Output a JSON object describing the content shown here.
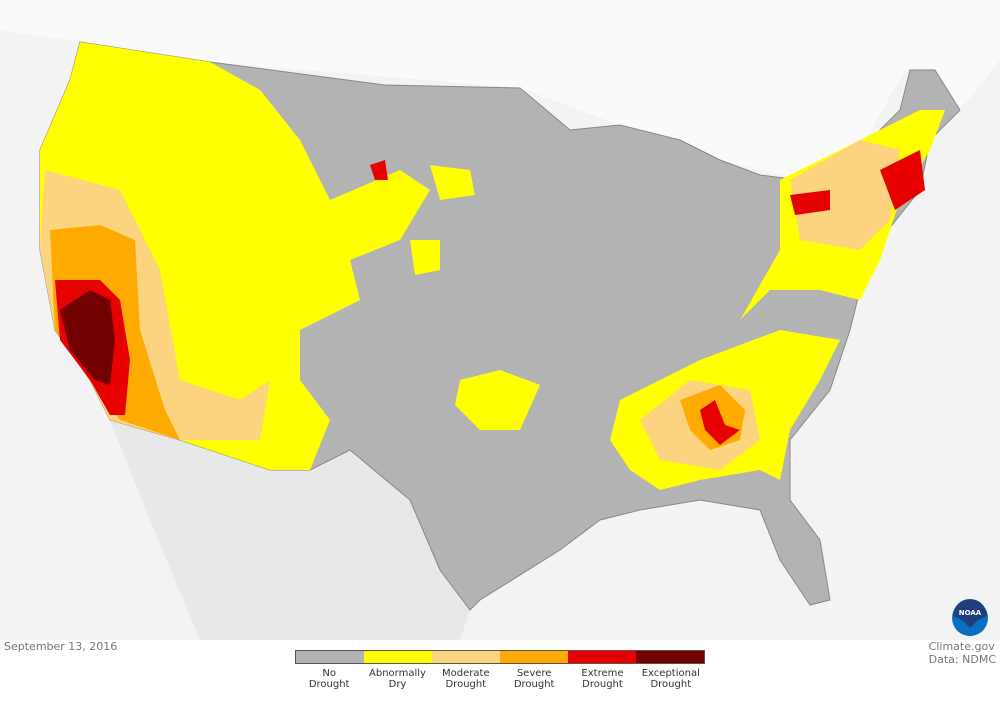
{
  "date": "September 13, 2016",
  "credit": {
    "line1": "Climate.gov",
    "line2": "Data: NDMC"
  },
  "logo_text": "NOAA",
  "legend": [
    {
      "line1": "No",
      "line2": "Drought",
      "color": "#b3b3b3"
    },
    {
      "line1": "Abnormally",
      "line2": "Dry",
      "color": "#ffff00"
    },
    {
      "line1": "Moderate",
      "line2": "Drought",
      "color": "#fcd37f"
    },
    {
      "line1": "Severe",
      "line2": "Drought",
      "color": "#ffaa00"
    },
    {
      "line1": "Extreme",
      "line2": "Drought",
      "color": "#e60000"
    },
    {
      "line1": "Exceptional",
      "line2": "Drought",
      "color": "#730000"
    }
  ]
}
